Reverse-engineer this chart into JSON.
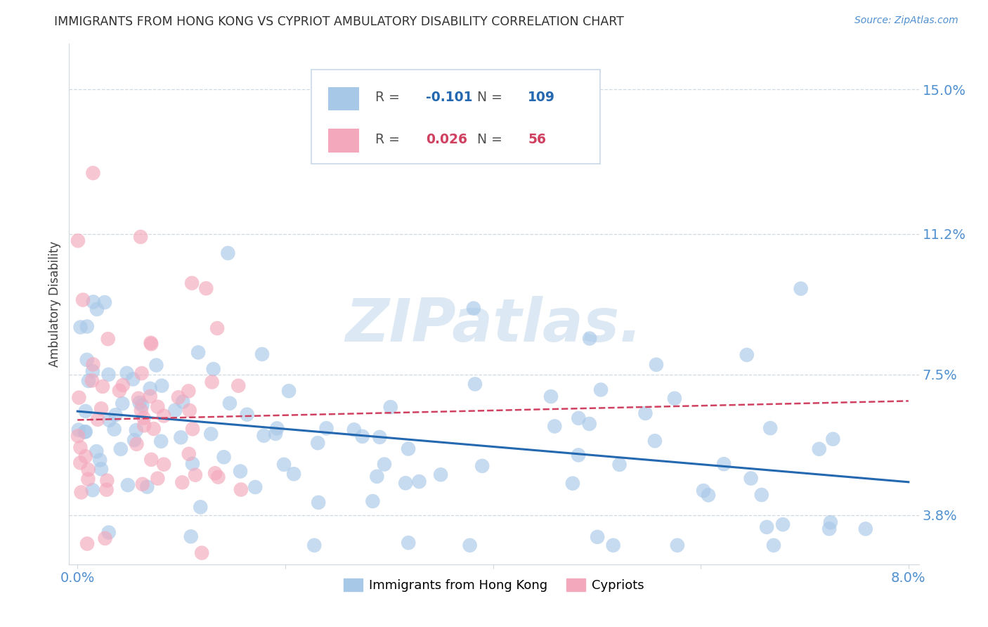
{
  "title": "IMMIGRANTS FROM HONG KONG VS CYPRIOT AMBULATORY DISABILITY CORRELATION CHART",
  "source_text": "Source: ZipAtlas.com",
  "ylabel": "Ambulatory Disability",
  "xmin": 0.0,
  "xmax": 0.08,
  "ymin": 0.025,
  "ymax": 0.162,
  "ytick_vals": [
    0.038,
    0.075,
    0.112,
    0.15
  ],
  "ytick_labels": [
    "3.8%",
    "7.5%",
    "11.2%",
    "15.0%"
  ],
  "blue_R": -0.101,
  "blue_N": 109,
  "pink_R": 0.026,
  "pink_N": 56,
  "blue_color": "#a8c8e8",
  "pink_color": "#f4a8bc",
  "blue_line_color": "#2468b0",
  "pink_line_color": "#d04060",
  "grid_color": "#d0d8e0",
  "title_color": "#303030",
  "axis_color": "#5090d0",
  "watermark_color": "#dce8f4",
  "legend_label_blue": "Immigrants from Hong Kong",
  "legend_label_pink": "Cypriots",
  "blue_R_text": "-0.101",
  "pink_R_text": "0.026",
  "blue_N_text": "109",
  "pink_N_text": "56"
}
